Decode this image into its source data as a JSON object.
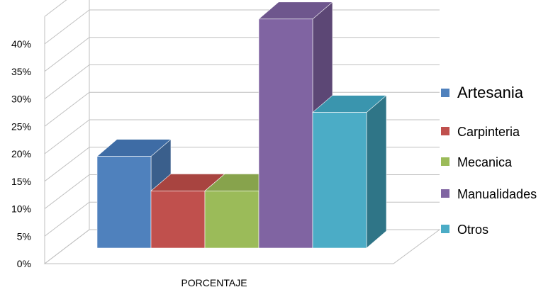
{
  "chart_data": {
    "type": "bar",
    "title": "",
    "xlabel": "PORCENTAJE",
    "ylabel": "",
    "ylim": [
      0,
      45
    ],
    "yticks": [
      "0%",
      "5%",
      "10%",
      "15%",
      "20%",
      "25%",
      "30%",
      "35%",
      "40%"
    ],
    "categories": [
      "PORCENTAJE"
    ],
    "series": [
      {
        "name": "Artesania",
        "values": [
          16.7
        ],
        "color": "#4F81BD",
        "side": "#3A5F8C",
        "top": "#3E6CA5"
      },
      {
        "name": "Carpinteria",
        "values": [
          10.4
        ],
        "color": "#C0504D",
        "side": "#8C3A38",
        "top": "#A84440"
      },
      {
        "name": "Mecanica",
        "values": [
          10.4
        ],
        "color": "#9BBB59",
        "side": "#718A40",
        "top": "#87A34C"
      },
      {
        "name": "Manualidades",
        "values": [
          41.7
        ],
        "color": "#8064A2",
        "side": "#5C4775",
        "top": "#6E568D"
      },
      {
        "name": "Otros",
        "values": [
          24.7
        ],
        "color": "#4BACC6",
        "side": "#2F7587",
        "top": "#3A95AE"
      }
    ],
    "legend_position": "right",
    "grid": true,
    "style": "3d-clustered-column"
  }
}
